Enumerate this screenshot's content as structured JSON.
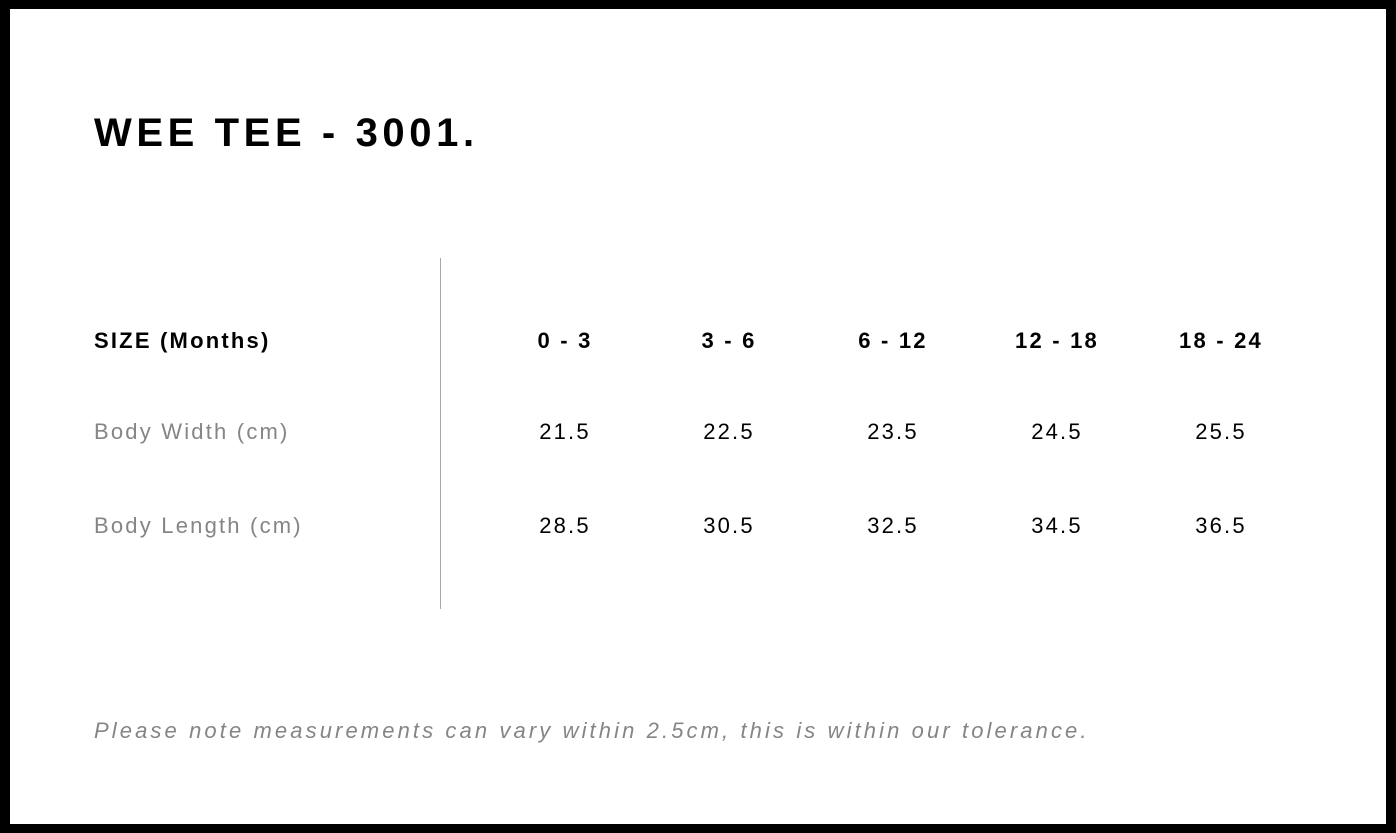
{
  "title": "WEE TEE - 3001.",
  "table": {
    "header": {
      "label": "SIZE (Months)",
      "values": [
        "0 - 3",
        "3 - 6",
        "6 - 12",
        "12 - 18",
        "18 - 24"
      ]
    },
    "rows": [
      {
        "label": "Body Width (cm)",
        "values": [
          "21.5",
          "22.5",
          "23.5",
          "24.5",
          "25.5"
        ]
      },
      {
        "label": "Body Length (cm)",
        "values": [
          "28.5",
          "30.5",
          "32.5",
          "34.5",
          "36.5"
        ]
      }
    ]
  },
  "note": "Please note measurements can vary within 2.5cm, this is within our tolerance.",
  "colors": {
    "frame": "#000000",
    "label_grey": "#858585",
    "divider": "#a8a8a8"
  }
}
